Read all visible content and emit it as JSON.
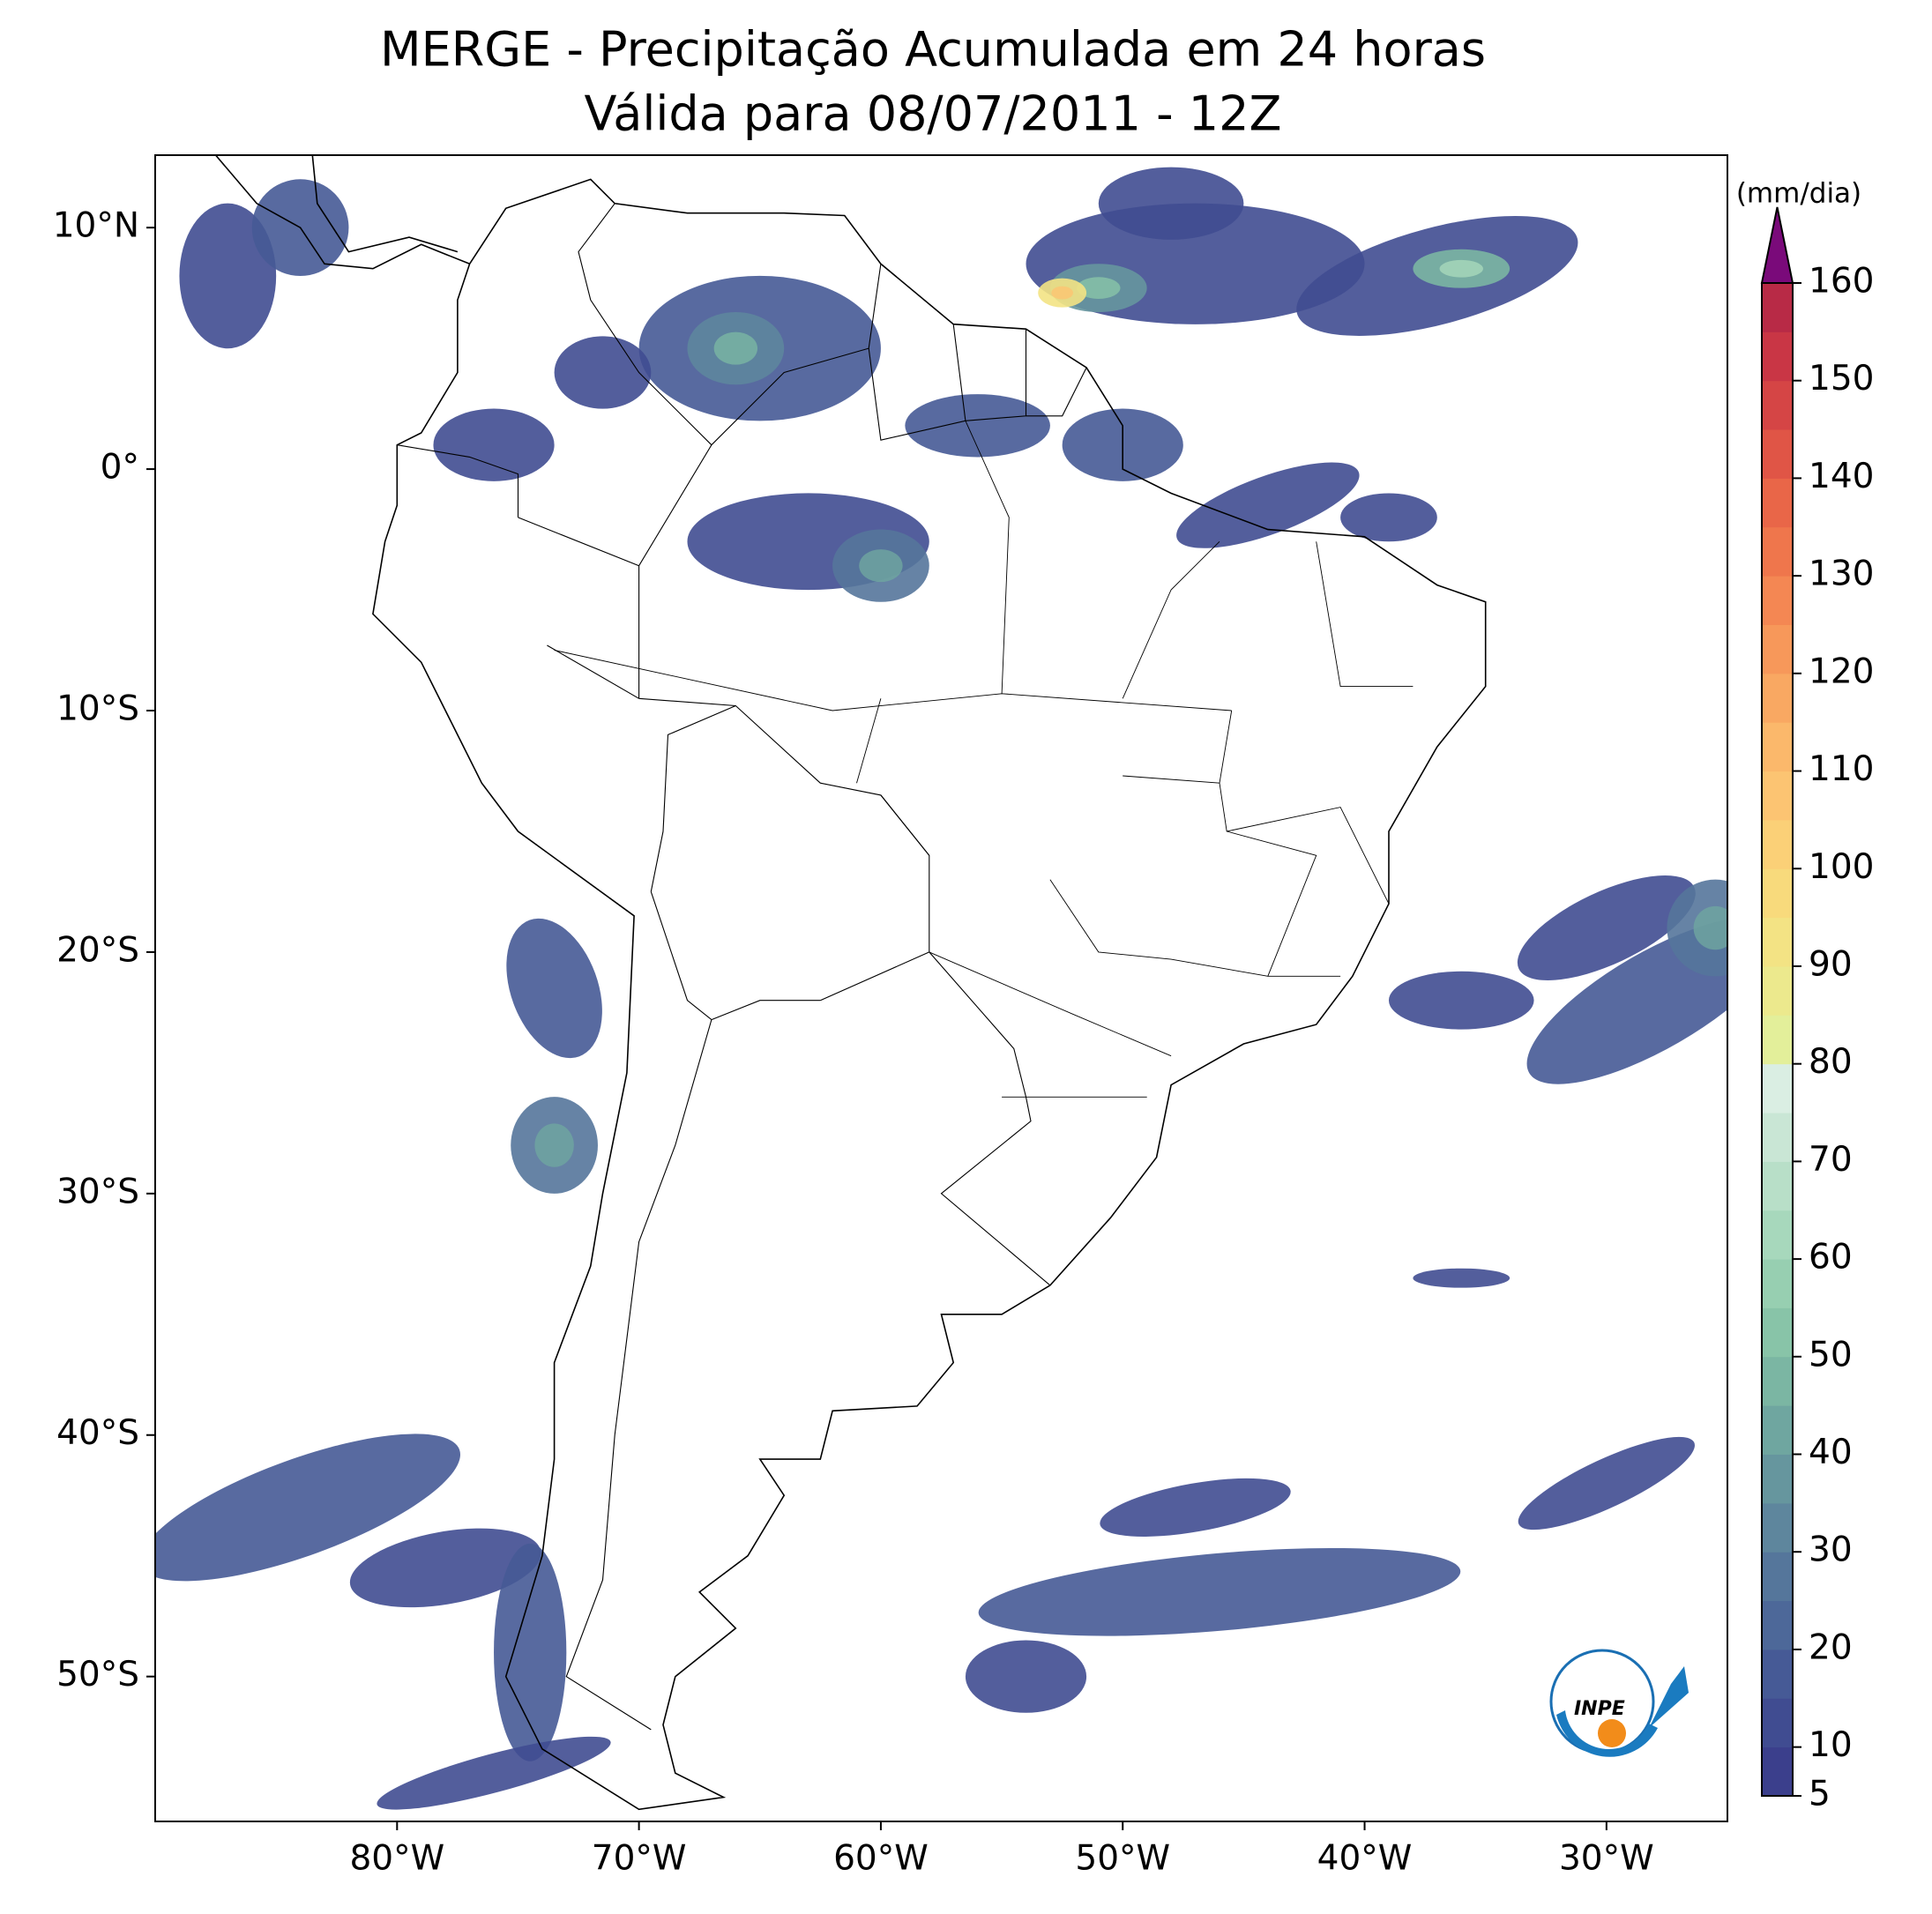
{
  "map": {
    "title": "MERGE - Precipitação Acumulada em 24 horas",
    "subtitle": "Válida para 08/07/2011 - 12Z",
    "xlim": [
      -90,
      -25
    ],
    "ylim": [
      -56,
      13
    ],
    "xticks": [
      {
        "value": -80,
        "label": "80°W"
      },
      {
        "value": -70,
        "label": "70°W"
      },
      {
        "value": -60,
        "label": "60°W"
      },
      {
        "value": -50,
        "label": "50°W"
      },
      {
        "value": -40,
        "label": "40°W"
      },
      {
        "value": -30,
        "label": "30°W"
      }
    ],
    "yticks": [
      {
        "value": 10,
        "label": "10°N"
      },
      {
        "value": 0,
        "label": "0°"
      },
      {
        "value": -10,
        "label": "10°S"
      },
      {
        "value": -20,
        "label": "20°S"
      },
      {
        "value": -30,
        "label": "30°S"
      },
      {
        "value": -40,
        "label": "40°S"
      },
      {
        "value": -50,
        "label": "50°S"
      }
    ],
    "logo_text": "INPE"
  },
  "colorbar": {
    "label": "(mm/dia)",
    "lim": [
      5,
      160
    ],
    "step": 5,
    "ticks": [
      5,
      10,
      20,
      30,
      40,
      50,
      60,
      70,
      80,
      90,
      100,
      110,
      120,
      130,
      140,
      150,
      160
    ],
    "colors": [
      "#3b3f8c",
      "#404c91",
      "#465a96",
      "#4d6899",
      "#55769b",
      "#5e869d",
      "#66969e",
      "#6fa6a0",
      "#7bb6a3",
      "#88c4a8",
      "#97cfb1",
      "#a7d8bc",
      "#b8dfc8",
      "#c9e6d5",
      "#daeee3",
      "#e3ef9a",
      "#ece98d",
      "#f3e384",
      "#f8da7c",
      "#fbd077",
      "#fcc472",
      "#fbb86b",
      "#f9a862",
      "#f7985a",
      "#f48753",
      "#ef764c",
      "#e96648",
      "#e05546",
      "#d54545",
      "#c93645",
      "#b82a46"
    ],
    "extend_color": "#7a0a7a"
  }
}
